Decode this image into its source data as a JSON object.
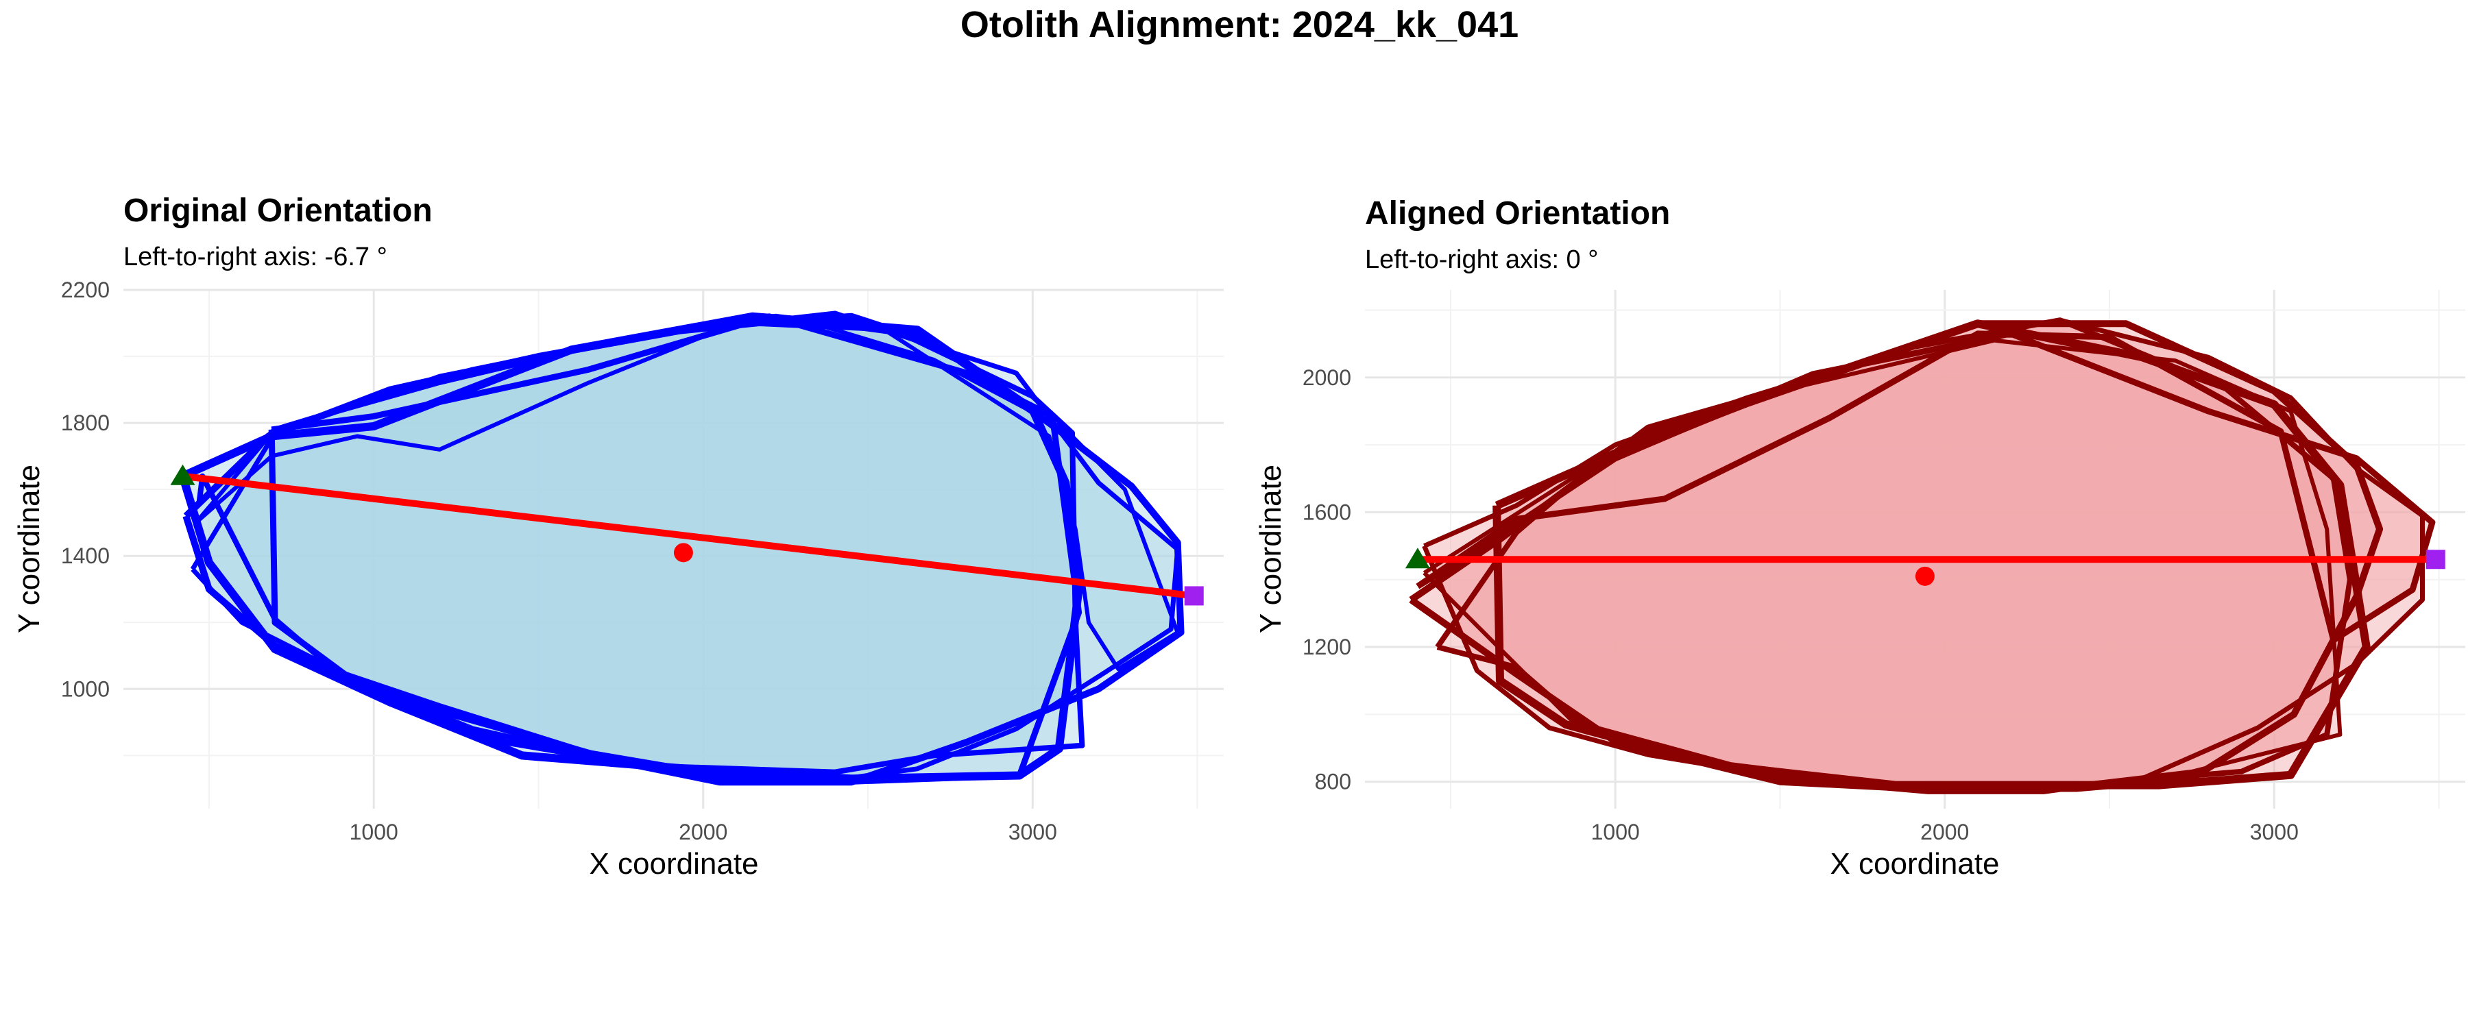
{
  "figure": {
    "title": "Otolith Alignment: 2024_kk_041"
  },
  "chart_data": [
    {
      "type": "scatter",
      "title": "Original Orientation",
      "subtitle": "Left-to-right axis: -6.7 °",
      "xlabel": "X coordinate",
      "ylabel": "Y coordinate",
      "xlim": [
        240,
        3580
      ],
      "ylim": [
        640,
        2200
      ],
      "xticks": [
        1000,
        2000,
        3000
      ],
      "yticks": [
        1000,
        1400,
        1800,
        2200
      ],
      "grid": true,
      "outline_color": "#0000ff",
      "fill_color": "#add8e6",
      "outlines": [
        [
          [
            450,
            1360
          ],
          [
            700,
            1770
          ],
          [
            1200,
            1940
          ],
          [
            1450,
            1990
          ],
          [
            1950,
            2080
          ],
          [
            2400,
            2130
          ],
          [
            2700,
            2030
          ],
          [
            2950,
            1950
          ],
          [
            3200,
            1620
          ],
          [
            3440,
            1420
          ],
          [
            3420,
            1180
          ],
          [
            3220,
            1050
          ],
          [
            2950,
            880
          ],
          [
            2650,
            760
          ],
          [
            2350,
            720
          ],
          [
            1950,
            760
          ],
          [
            1650,
            810
          ],
          [
            1200,
            950
          ],
          [
            900,
            1050
          ],
          [
            600,
            1200
          ],
          [
            450,
            1360
          ]
        ],
        [
          [
            430,
            1520
          ],
          [
            680,
            1760
          ],
          [
            1050,
            1900
          ],
          [
            1500,
            2000
          ],
          [
            2000,
            2090
          ],
          [
            2450,
            2120
          ],
          [
            2700,
            2040
          ],
          [
            3050,
            1800
          ],
          [
            3300,
            1610
          ],
          [
            3440,
            1440
          ],
          [
            3450,
            1170
          ],
          [
            3200,
            1000
          ],
          [
            2800,
            840
          ],
          [
            2450,
            720
          ],
          [
            2050,
            720
          ],
          [
            1750,
            780
          ],
          [
            1250,
            920
          ],
          [
            950,
            1020
          ],
          [
            700,
            1130
          ],
          [
            500,
            1300
          ],
          [
            430,
            1520
          ]
        ],
        [
          [
            470,
            1560
          ],
          [
            700,
            1780
          ],
          [
            1300,
            1960
          ],
          [
            1800,
            2060
          ],
          [
            2220,
            2120
          ],
          [
            2600,
            2070
          ],
          [
            3000,
            1880
          ],
          [
            3120,
            1770
          ],
          [
            3130,
            1200
          ],
          [
            3150,
            830
          ],
          [
            2700,
            800
          ],
          [
            2400,
            750
          ],
          [
            1800,
            770
          ],
          [
            1300,
            880
          ],
          [
            900,
            1040
          ],
          [
            700,
            1210
          ],
          [
            480,
            1640
          ],
          [
            470,
            1560
          ]
        ],
        [
          [
            420,
            1640
          ],
          [
            690,
            1760
          ],
          [
            1000,
            1790
          ],
          [
            1600,
            2020
          ],
          [
            2150,
            2120
          ],
          [
            2650,
            2080
          ],
          [
            3000,
            1840
          ],
          [
            3100,
            1620
          ],
          [
            3140,
            1300
          ],
          [
            3080,
            820
          ],
          [
            2960,
            740
          ],
          [
            2450,
            730
          ],
          [
            1950,
            760
          ],
          [
            1450,
            800
          ],
          [
            1050,
            960
          ],
          [
            700,
            1120
          ],
          [
            500,
            1380
          ],
          [
            420,
            1640
          ]
        ],
        [
          [
            460,
            1500
          ],
          [
            690,
            1700
          ],
          [
            950,
            1760
          ],
          [
            1200,
            1720
          ],
          [
            1650,
            1920
          ],
          [
            2100,
            2100
          ],
          [
            2550,
            2080
          ],
          [
            3050,
            1760
          ],
          [
            3130,
            1480
          ],
          [
            3170,
            1200
          ],
          [
            3260,
            1060
          ],
          [
            3440,
            1170
          ],
          [
            3280,
            1600
          ],
          [
            3100,
            1780
          ],
          [
            2700,
            1990
          ],
          [
            2300,
            2110
          ],
          [
            1800,
            2060
          ],
          [
            1200,
            1920
          ],
          [
            700,
            1780
          ],
          [
            460,
            1500
          ]
        ],
        [
          [
            690,
            1780
          ],
          [
            1000,
            1820
          ],
          [
            1650,
            1960
          ],
          [
            2200,
            2120
          ],
          [
            2800,
            1950
          ],
          [
            3060,
            1820
          ],
          [
            3140,
            1230
          ],
          [
            2960,
            740
          ],
          [
            2400,
            720
          ],
          [
            2000,
            740
          ],
          [
            1400,
            840
          ],
          [
            1000,
            980
          ],
          [
            700,
            1200
          ],
          [
            690,
            1780
          ]
        ]
      ],
      "centroid": [
        1940,
        1410
      ],
      "axis_line": [
        [
          420,
          1640
        ],
        [
          3490,
          1280
        ]
      ],
      "left_landmark": [
        420,
        1640
      ],
      "right_landmark": [
        3490,
        1280
      ],
      "centroid_color": "#ff0000",
      "axis_color": "#ff0000",
      "left_color": "#006400",
      "right_color": "#a020f0"
    },
    {
      "type": "scatter",
      "title": "Aligned Orientation",
      "subtitle": "Left-to-right axis: 0 °",
      "xlabel": "X coordinate",
      "ylabel": "Y coordinate",
      "xlim": [
        240,
        3580
      ],
      "ylim": [
        720,
        2260
      ],
      "xticks": [
        1000,
        2000,
        3000
      ],
      "yticks": [
        800,
        1200,
        1600,
        2000
      ],
      "grid": true,
      "outline_color": "#8b0000",
      "fill_color": "#f2a8ab",
      "outlines": [
        [
          [
            420,
            1500
          ],
          [
            700,
            1620
          ],
          [
            1000,
            1800
          ],
          [
            1400,
            1940
          ],
          [
            1900,
            2090
          ],
          [
            2350,
            2170
          ],
          [
            2800,
            2060
          ],
          [
            3050,
            1940
          ],
          [
            3250,
            1730
          ],
          [
            3450,
            1590
          ],
          [
            3450,
            1340
          ],
          [
            3250,
            1150
          ],
          [
            2950,
            960
          ],
          [
            2600,
            810
          ],
          [
            2300,
            770
          ],
          [
            1950,
            770
          ],
          [
            1600,
            800
          ],
          [
            1100,
            880
          ],
          [
            800,
            960
          ],
          [
            580,
            1130
          ],
          [
            420,
            1500
          ]
        ],
        [
          [
            380,
            1340
          ],
          [
            650,
            1520
          ],
          [
            1100,
            1850
          ],
          [
            1600,
            1990
          ],
          [
            2100,
            2160
          ],
          [
            2550,
            2160
          ],
          [
            3000,
            1960
          ],
          [
            3250,
            1740
          ],
          [
            3320,
            1550
          ],
          [
            3250,
            1350
          ],
          [
            3060,
            1000
          ],
          [
            2750,
            810
          ],
          [
            2400,
            780
          ],
          [
            1900,
            780
          ],
          [
            1500,
            800
          ],
          [
            1000,
            920
          ],
          [
            700,
            1120
          ],
          [
            380,
            1340
          ]
        ],
        [
          [
            460,
            1200
          ],
          [
            700,
            1540
          ],
          [
            950,
            1750
          ],
          [
            1400,
            1920
          ],
          [
            1900,
            2090
          ],
          [
            2350,
            2170
          ],
          [
            2850,
            1970
          ],
          [
            3180,
            1700
          ],
          [
            3230,
            1400
          ],
          [
            3160,
            940
          ],
          [
            2900,
            830
          ],
          [
            2400,
            790
          ],
          [
            1850,
            790
          ],
          [
            1350,
            850
          ],
          [
            900,
            970
          ],
          [
            700,
            1140
          ],
          [
            460,
            1200
          ]
        ],
        [
          [
            640,
            1620
          ],
          [
            1150,
            1840
          ],
          [
            1650,
            2010
          ],
          [
            2100,
            2160
          ],
          [
            2600,
            2060
          ],
          [
            3000,
            1920
          ],
          [
            3200,
            1680
          ],
          [
            3280,
            1200
          ],
          [
            3050,
            820
          ],
          [
            2650,
            790
          ],
          [
            2250,
            790
          ],
          [
            1850,
            790
          ],
          [
            1300,
            850
          ],
          [
            850,
            970
          ],
          [
            650,
            1100
          ],
          [
            640,
            1620
          ]
        ],
        [
          [
            420,
            1420
          ],
          [
            900,
            1720
          ],
          [
            1500,
            1960
          ],
          [
            2150,
            2110
          ],
          [
            2700,
            2050
          ],
          [
            3050,
            1900
          ],
          [
            3160,
            1550
          ],
          [
            3200,
            940
          ],
          [
            2750,
            830
          ],
          [
            2400,
            790
          ],
          [
            1950,
            790
          ],
          [
            1400,
            820
          ],
          [
            900,
            950
          ],
          [
            420,
            1420
          ]
        ],
        [
          [
            400,
            1380
          ],
          [
            700,
            1580
          ],
          [
            1150,
            1640
          ],
          [
            1650,
            1880
          ],
          [
            2100,
            2130
          ],
          [
            2500,
            2120
          ],
          [
            3020,
            1840
          ],
          [
            3180,
            1220
          ],
          [
            3420,
            1370
          ],
          [
            3480,
            1570
          ],
          [
            3250,
            1760
          ],
          [
            2800,
            1900
          ],
          [
            2200,
            2130
          ],
          [
            1600,
            2010
          ],
          [
            1000,
            1760
          ],
          [
            600,
            1500
          ],
          [
            400,
            1380
          ]
        ]
      ],
      "centroid": [
        1940,
        1410
      ],
      "axis_line": [
        [
          400,
          1460
        ],
        [
          3490,
          1460
        ]
      ],
      "left_landmark": [
        400,
        1460
      ],
      "right_landmark": [
        3490,
        1460
      ],
      "centroid_color": "#ff0000",
      "axis_color": "#ff0000",
      "left_color": "#006400",
      "right_color": "#a020f0"
    }
  ]
}
